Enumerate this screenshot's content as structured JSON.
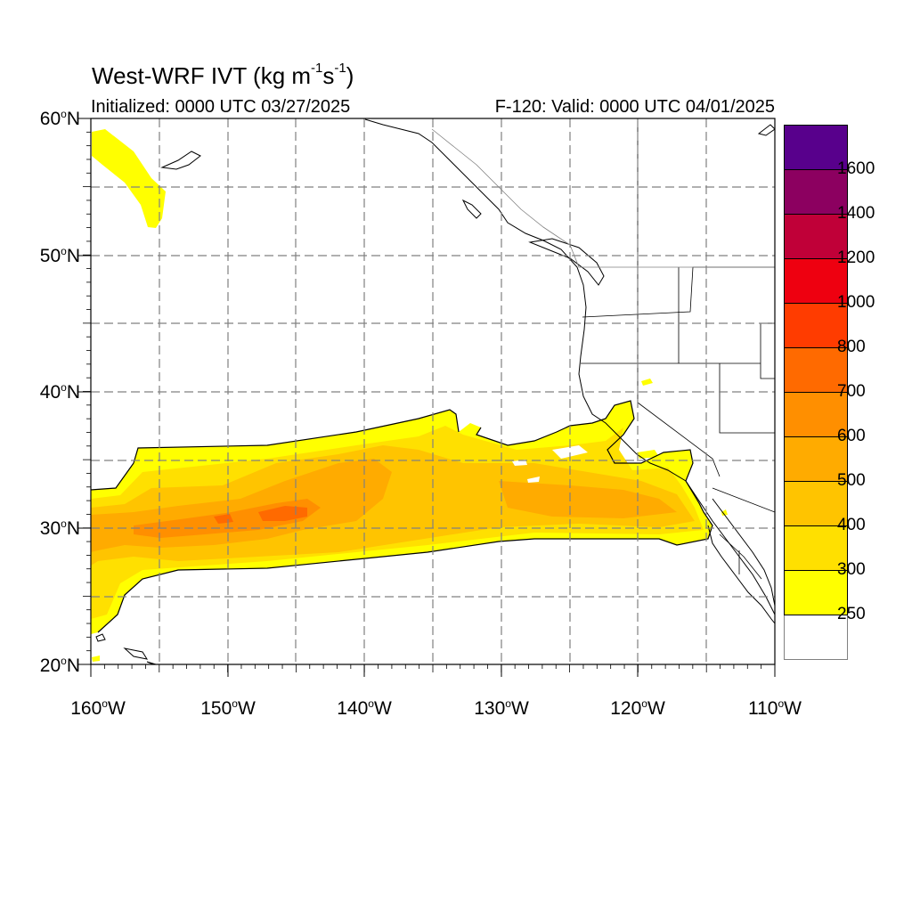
{
  "title": {
    "main": "West-WRF IVT (kg m",
    "sup1": "-1",
    "mid": "s",
    "sup2": "-1",
    "end": ")"
  },
  "initialized": "Initialized: 0000 UTC 03/27/2025",
  "valid": "F-120: Valid: 0000 UTC 04/01/2025",
  "lat_labels": [
    {
      "text": "60",
      "suffix": "N"
    },
    {
      "text": "50",
      "suffix": "N"
    },
    {
      "text": "40",
      "suffix": "N"
    },
    {
      "text": "30",
      "suffix": "N"
    },
    {
      "text": "20",
      "suffix": "N"
    }
  ],
  "lon_labels": [
    {
      "text": "160",
      "suffix": "W"
    },
    {
      "text": "150",
      "suffix": "W"
    },
    {
      "text": "140",
      "suffix": "W"
    },
    {
      "text": "130",
      "suffix": "W"
    },
    {
      "text": "120",
      "suffix": "W"
    },
    {
      "text": "110",
      "suffix": "W"
    }
  ],
  "extent": {
    "lon_min": -160,
    "lon_max": -110,
    "lat_min": 20,
    "lat_max": 60
  },
  "colorbar": {
    "levels": [
      "250",
      "300",
      "400",
      "500",
      "600",
      "700",
      "800",
      "1000",
      "1200",
      "1400",
      "1600"
    ],
    "colors": [
      "#ffffff",
      "#ffff00",
      "#ffe000",
      "#ffc400",
      "#ffab00",
      "#ff8f00",
      "#ff6a00",
      "#ff3c00",
      "#ee0010",
      "#c00038",
      "#8c0060",
      "#58008c"
    ]
  },
  "colors": {
    "ivt_250": "#ffff00",
    "ivt_300": "#ffe000",
    "ivt_400": "#ffc400",
    "ivt_500": "#ffab00",
    "ivt_600": "#ff8f00",
    "ivt_700": "#ff6a00"
  }
}
